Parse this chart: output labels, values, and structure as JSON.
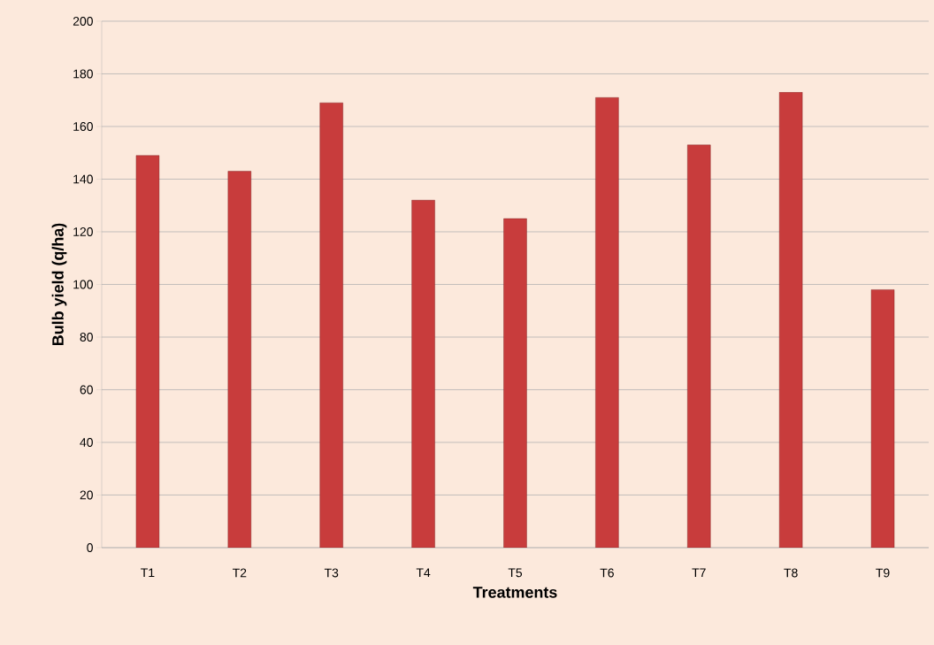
{
  "chart_data": {
    "type": "bar",
    "xlabel": "Treatments",
    "ylabel": "Bulb yield  (q/ha)",
    "categories": [
      "T1",
      "T2",
      "T3",
      "T4",
      "T5",
      "T6",
      "T7",
      "T8",
      "T9"
    ],
    "values": [
      149,
      143,
      169,
      132,
      125,
      171,
      153,
      173,
      98
    ],
    "color": "#c83c3c",
    "ylim": [
      0,
      200
    ],
    "yticks": [
      0,
      20,
      40,
      60,
      80,
      100,
      120,
      140,
      160,
      180,
      200
    ],
    "grid": "y"
  }
}
